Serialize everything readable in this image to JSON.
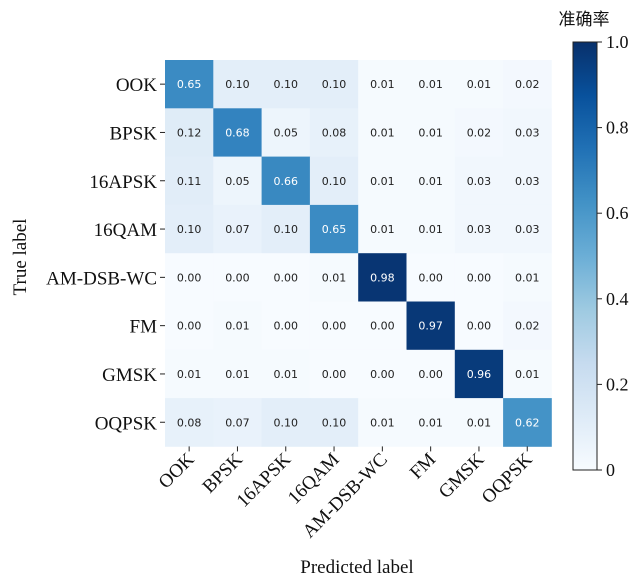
{
  "chart_data": {
    "type": "heatmap",
    "title": "",
    "xlabel": "Predicted label",
    "ylabel": "True label",
    "row_labels": [
      "OOK",
      "BPSK",
      "16APSK",
      "16QAM",
      "AM-DSB-WC",
      "FM",
      "GMSK",
      "OQPSK"
    ],
    "col_labels": [
      "OOK",
      "BPSK",
      "16APSK",
      "16QAM",
      "AM-DSB-WC",
      "FM",
      "GMSK",
      "OQPSK"
    ],
    "values": [
      [
        0.65,
        0.1,
        0.1,
        0.1,
        0.01,
        0.01,
        0.01,
        0.02
      ],
      [
        0.12,
        0.68,
        0.05,
        0.08,
        0.01,
        0.01,
        0.02,
        0.03
      ],
      [
        0.11,
        0.05,
        0.66,
        0.1,
        0.01,
        0.01,
        0.03,
        0.03
      ],
      [
        0.1,
        0.07,
        0.1,
        0.65,
        0.01,
        0.01,
        0.03,
        0.03
      ],
      [
        0.0,
        0.0,
        0.0,
        0.01,
        0.98,
        0.0,
        0.0,
        0.01
      ],
      [
        0.0,
        0.01,
        0.0,
        0.0,
        0.0,
        0.97,
        0.0,
        0.02
      ],
      [
        0.01,
        0.01,
        0.01,
        0.0,
        0.0,
        0.0,
        0.96,
        0.01
      ],
      [
        0.08,
        0.07,
        0.1,
        0.1,
        0.01,
        0.01,
        0.01,
        0.62
      ]
    ],
    "colorbar": {
      "title": "准确率",
      "range": [
        0,
        1.0
      ],
      "ticks": [
        "0",
        "0.2",
        "0.4",
        "0.6",
        "0.8",
        "1.0"
      ],
      "colormap": "Blues"
    },
    "grid": false
  }
}
